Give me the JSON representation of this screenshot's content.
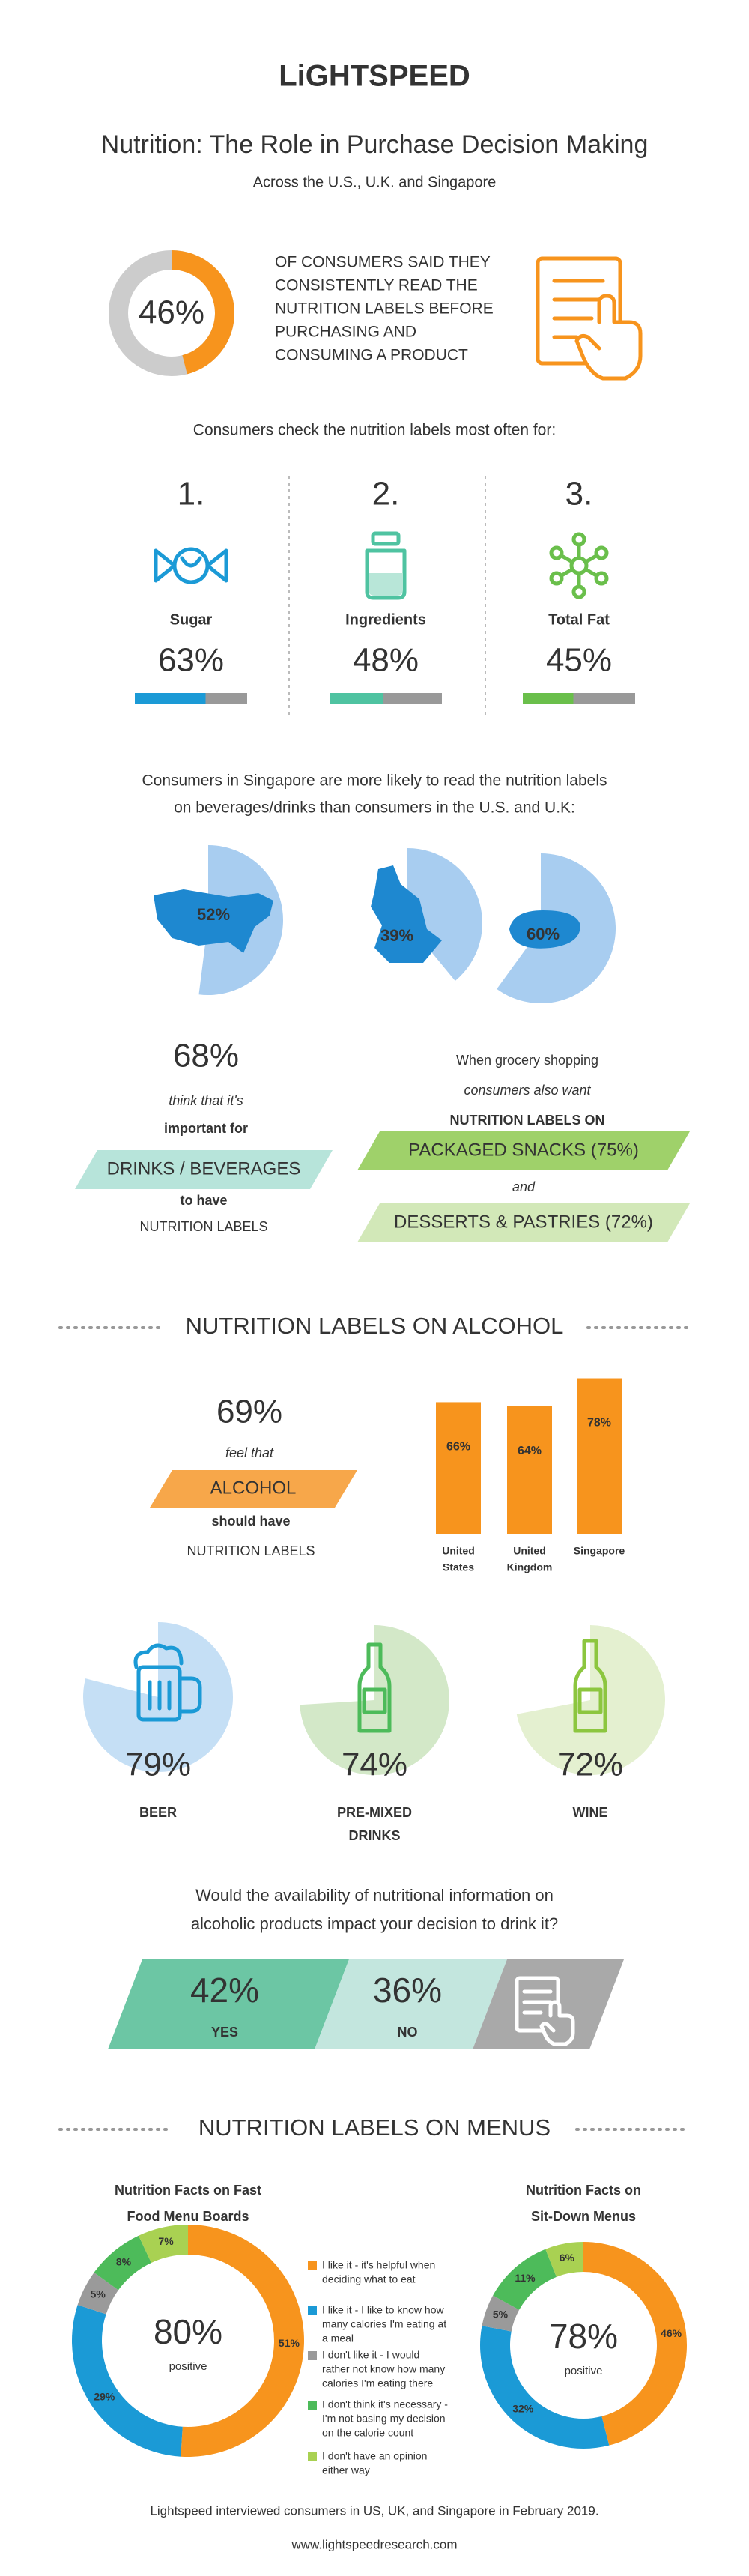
{
  "header": {
    "logo": "LiGHTSPEED",
    "title": "Nutrition: The Role in Purchase Decision Making",
    "subtitle": "Across the U.S., U.K. and Singapore"
  },
  "read_labels": {
    "value": 46,
    "label": "46%",
    "color": "#f7941d",
    "lines": [
      "OF CONSUMERS SAID THEY",
      "CONSISTENTLY READ THE",
      "NUTRITION LABELS BEFORE",
      "PURCHASING AND",
      "CONSUMING A PRODUCT"
    ]
  },
  "most_checked": {
    "heading": "Consumers check the nutrition labels most often for:",
    "items": [
      {
        "rank": "1.",
        "name": "Sugar",
        "value": 63,
        "label": "63%",
        "color": "#1b9ad6"
      },
      {
        "rank": "2.",
        "name": "Ingredients",
        "value": 48,
        "label": "48%",
        "color": "#4fc3a1"
      },
      {
        "rank": "3.",
        "name": "Total Fat",
        "value": 45,
        "label": "45%",
        "color": "#6abf4b"
      }
    ]
  },
  "beverages": {
    "heading": [
      "Consumers in Singapore are more likely to read the nutrition labels",
      "on beverages/drinks than consumers in the U.S. and U.K:"
    ],
    "countries": [
      {
        "value": 52,
        "label": "52%"
      },
      {
        "value": 39,
        "label": "39%"
      },
      {
        "value": 60,
        "label": "60%"
      }
    ]
  },
  "importance": {
    "label": "68%",
    "pre": [
      "think that it's",
      "important for"
    ],
    "banner": "DRINKS / BEVERAGES",
    "post": [
      "to have",
      "NUTRITION LABELS"
    ]
  },
  "grocery": {
    "intro": [
      "When grocery shopping",
      "consumers also want",
      "NUTRITION LABELS ON"
    ],
    "first": "PACKAGED SNACKS (75%)",
    "joiner": "and",
    "second": "DESSERTS & PASTRIES (72%)"
  },
  "alcohol": {
    "heading": "NUTRITION LABELS ON ALCOHOL",
    "label": "69%",
    "pre": "feel that",
    "banner": "ALCOHOL",
    "post": [
      "should have",
      "NUTRITION LABELS"
    ],
    "bars": [
      {
        "lines": [
          "United",
          "States"
        ],
        "value": 66,
        "label": "66%"
      },
      {
        "lines": [
          "United",
          "Kingdom"
        ],
        "value": 64,
        "label": "64%"
      },
      {
        "lines": [
          "Singapore"
        ],
        "value": 78,
        "label": "78%"
      }
    ],
    "drinks": [
      {
        "name": [
          "BEER"
        ],
        "value": 79,
        "label": "79%",
        "color": "#c5dff5"
      },
      {
        "name": [
          "PRE-MIXED",
          "DRINKS"
        ],
        "value": 74,
        "label": "74%",
        "color": "#d3e8c8"
      },
      {
        "name": [
          "WINE"
        ],
        "value": 72,
        "label": "72%",
        "color": "#e4f0d0"
      }
    ],
    "question": [
      "Would the availability of nutritional information on",
      "alcoholic products impact your decision to drink it?"
    ],
    "answers": [
      {
        "label": "42%",
        "name": "YES"
      },
      {
        "label": "36%",
        "name": "NO"
      }
    ]
  },
  "menus": {
    "heading": "NUTRITION LABELS ON MENUS",
    "legend": [
      {
        "lines": [
          "I like it - it's helpful when",
          "deciding what to eat"
        ],
        "color": "#f7941d"
      },
      {
        "lines": [
          "I like it - I like to know how",
          "many calories I'm eating at",
          "a meal"
        ],
        "color": "#1b9ad6"
      },
      {
        "lines": [
          "I don't like it - I would",
          "rather not know how many",
          "calories I'm eating there"
        ],
        "color": "#9a9a9a"
      },
      {
        "lines": [
          "I don't think it's necessary -",
          "I'm not basing my decision",
          "on the calorie count"
        ],
        "color": "#4dbb5a"
      },
      {
        "lines": [
          "I don't have an opinion",
          "either way"
        ],
        "color": "#a9d152"
      }
    ],
    "charts": [
      {
        "title": [
          "Nutrition Facts on Fast",
          "Food Menu Boards"
        ],
        "center": "80%",
        "caption": "positive",
        "segments": [
          {
            "value": 51,
            "label": "51%"
          },
          {
            "value": 29,
            "label": "29%"
          },
          {
            "value": 5,
            "label": "5%"
          },
          {
            "value": 8,
            "label": "8%"
          },
          {
            "value": 7,
            "label": "7%"
          }
        ]
      },
      {
        "title": [
          "Nutrition Facts on",
          "Sit-Down Menus"
        ],
        "center": "78%",
        "caption": "positive",
        "segments": [
          {
            "value": 46,
            "label": "46%"
          },
          {
            "value": 32,
            "label": "32%"
          },
          {
            "value": 5,
            "label": "5%"
          },
          {
            "value": 11,
            "label": "11%"
          },
          {
            "value": 6,
            "label": "6%"
          }
        ]
      }
    ]
  },
  "footer": {
    "note": "Lightspeed interviewed consumers in US, UK, and Singapore in February 2019.",
    "url": "www.lightspeedresearch.com"
  }
}
